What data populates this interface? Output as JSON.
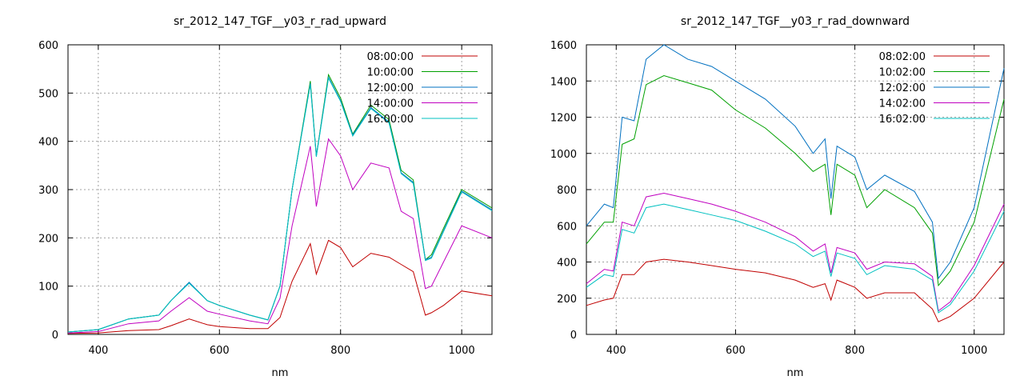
{
  "chart_data": [
    {
      "type": "line",
      "title": "sr_2012_147_TGF__y03_r_rad_upward",
      "xlabel": "nm",
      "ylabel": "",
      "xlim": [
        350,
        1050
      ],
      "ylim": [
        0,
        600
      ],
      "xticks": [
        400,
        600,
        800,
        1000
      ],
      "yticks": [
        0,
        100,
        200,
        300,
        400,
        500,
        600
      ],
      "grid": true,
      "legend_position": "top-right",
      "series": [
        {
          "name": "08:00:00",
          "color": "#c00000",
          "x": [
            350,
            400,
            450,
            500,
            520,
            550,
            580,
            600,
            650,
            680,
            700,
            720,
            750,
            760,
            780,
            800,
            820,
            850,
            880,
            900,
            920,
            940,
            950,
            970,
            1000,
            1050
          ],
          "y": [
            2,
            3,
            8,
            10,
            18,
            32,
            20,
            16,
            12,
            12,
            35,
            110,
            188,
            125,
            195,
            180,
            140,
            168,
            160,
            145,
            130,
            40,
            45,
            60,
            90,
            80
          ]
        },
        {
          "name": "10:00:00",
          "color": "#00a000",
          "x": [
            350,
            400,
            450,
            500,
            520,
            550,
            580,
            600,
            650,
            680,
            700,
            720,
            750,
            760,
            780,
            800,
            820,
            850,
            880,
            900,
            920,
            940,
            950,
            970,
            1000,
            1050
          ],
          "y": [
            5,
            10,
            32,
            40,
            70,
            107,
            70,
            60,
            40,
            30,
            100,
            300,
            525,
            370,
            538,
            490,
            415,
            475,
            445,
            340,
            320,
            155,
            165,
            220,
            300,
            262
          ]
        },
        {
          "name": "12:00:00",
          "color": "#0070c0",
          "x": [
            350,
            400,
            450,
            500,
            520,
            550,
            580,
            600,
            650,
            680,
            700,
            720,
            750,
            760,
            780,
            800,
            820,
            850,
            880,
            900,
            920,
            940,
            950,
            970,
            1000,
            1050
          ],
          "y": [
            5,
            10,
            32,
            40,
            70,
            108,
            70,
            60,
            40,
            30,
            100,
            300,
            520,
            370,
            533,
            485,
            413,
            470,
            440,
            335,
            315,
            155,
            160,
            215,
            297,
            258
          ]
        },
        {
          "name": "14:00:00",
          "color": "#c000c0",
          "x": [
            350,
            400,
            450,
            500,
            520,
            550,
            580,
            600,
            650,
            680,
            700,
            720,
            750,
            760,
            780,
            800,
            820,
            850,
            880,
            900,
            920,
            940,
            950,
            970,
            1000,
            1050
          ],
          "y": [
            3,
            6,
            22,
            28,
            48,
            76,
            48,
            42,
            28,
            22,
            75,
            225,
            390,
            265,
            405,
            370,
            300,
            355,
            345,
            255,
            240,
            95,
            100,
            150,
            225,
            200
          ]
        },
        {
          "name": "16:00:00",
          "color": "#00c0c0",
          "x": [
            350,
            400,
            450,
            500,
            520,
            550,
            580,
            600,
            650,
            680,
            700,
            720,
            750,
            760,
            780,
            800,
            820,
            850,
            880,
            900,
            920,
            940,
            950,
            970,
            1000,
            1050
          ],
          "y": [
            5,
            10,
            32,
            40,
            70,
            106,
            70,
            60,
            40,
            30,
            100,
            300,
            518,
            368,
            531,
            483,
            411,
            468,
            438,
            333,
            313,
            153,
            158,
            213,
            295,
            256
          ]
        }
      ]
    },
    {
      "type": "line",
      "title": "sr_2012_147_TGF__y03_r_rad_downward",
      "xlabel": "nm",
      "ylabel": "",
      "xlim": [
        350,
        1050
      ],
      "ylim": [
        0,
        1600
      ],
      "xticks": [
        400,
        600,
        800,
        1000
      ],
      "yticks": [
        0,
        200,
        400,
        600,
        800,
        1000,
        1200,
        1400,
        1600
      ],
      "grid": true,
      "legend_position": "top-right",
      "series": [
        {
          "name": "08:02:00",
          "color": "#c00000",
          "x": [
            350,
            380,
            395,
            410,
            430,
            450,
            480,
            520,
            560,
            600,
            650,
            700,
            730,
            750,
            760,
            770,
            800,
            820,
            850,
            900,
            930,
            940,
            960,
            1000,
            1050
          ],
          "y": [
            160,
            190,
            200,
            330,
            330,
            400,
            415,
            400,
            380,
            360,
            340,
            300,
            260,
            280,
            190,
            300,
            260,
            200,
            230,
            230,
            140,
            70,
            100,
            200,
            400
          ]
        },
        {
          "name": "10:02:00",
          "color": "#00a000",
          "x": [
            350,
            380,
            395,
            410,
            430,
            450,
            480,
            520,
            560,
            600,
            650,
            700,
            730,
            750,
            760,
            770,
            800,
            820,
            850,
            900,
            930,
            940,
            960,
            1000,
            1050
          ],
          "y": [
            500,
            620,
            620,
            1050,
            1080,
            1380,
            1430,
            1390,
            1350,
            1240,
            1140,
            1000,
            900,
            940,
            660,
            940,
            880,
            700,
            800,
            700,
            560,
            270,
            350,
            620,
            1300
          ]
        },
        {
          "name": "12:02:00",
          "color": "#0070c0",
          "x": [
            350,
            380,
            395,
            410,
            430,
            450,
            480,
            520,
            560,
            600,
            650,
            700,
            730,
            750,
            760,
            770,
            800,
            820,
            850,
            900,
            930,
            940,
            960,
            1000,
            1050
          ],
          "y": [
            600,
            720,
            700,
            1200,
            1180,
            1520,
            1600,
            1520,
            1480,
            1400,
            1300,
            1150,
            1000,
            1080,
            750,
            1040,
            980,
            800,
            880,
            790,
            620,
            310,
            400,
            700,
            1470
          ]
        },
        {
          "name": "14:02:00",
          "color": "#c000c0",
          "x": [
            350,
            380,
            395,
            410,
            430,
            450,
            480,
            520,
            560,
            600,
            650,
            700,
            730,
            750,
            760,
            770,
            800,
            820,
            850,
            900,
            930,
            940,
            960,
            1000,
            1050
          ],
          "y": [
            280,
            360,
            350,
            620,
            600,
            760,
            780,
            750,
            720,
            680,
            620,
            540,
            460,
            500,
            340,
            480,
            450,
            360,
            400,
            390,
            320,
            130,
            180,
            380,
            720
          ]
        },
        {
          "name": "16:02:00",
          "color": "#00c0c0",
          "x": [
            350,
            380,
            395,
            410,
            430,
            450,
            480,
            520,
            560,
            600,
            650,
            700,
            730,
            750,
            760,
            770,
            800,
            820,
            850,
            900,
            930,
            940,
            960,
            1000,
            1050
          ],
          "y": [
            260,
            330,
            320,
            580,
            560,
            700,
            720,
            690,
            660,
            630,
            570,
            500,
            430,
            460,
            320,
            450,
            420,
            330,
            380,
            360,
            300,
            120,
            165,
            350,
            680
          ]
        }
      ]
    }
  ]
}
